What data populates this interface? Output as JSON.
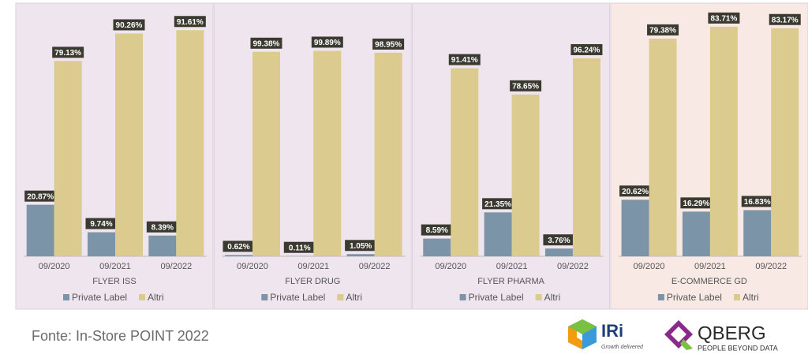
{
  "chart_data": [
    {
      "type": "bar",
      "title": "FLYER ISS",
      "categories": [
        "09/2020",
        "09/2021",
        "09/2022"
      ],
      "series": [
        {
          "name": "Private Label",
          "color": "#7b94a8",
          "values": [
            20.87,
            9.74,
            8.39
          ],
          "value_labels": [
            "20.87%",
            "9.74%",
            "8.39%"
          ]
        },
        {
          "name": "Altri",
          "color": "#dccb8e",
          "values": [
            79.13,
            90.26,
            91.61
          ],
          "value_labels": [
            "79.13%",
            "90.26%",
            "91.61%"
          ]
        }
      ],
      "ylim": [
        0,
        100
      ],
      "legend": "bottom",
      "background": "#efe5ee"
    },
    {
      "type": "bar",
      "title": "FLYER DRUG",
      "categories": [
        "09/2020",
        "09/2021",
        "09/2022"
      ],
      "series": [
        {
          "name": "Private Label",
          "color": "#7b94a8",
          "values": [
            0.62,
            0.11,
            1.05
          ],
          "value_labels": [
            "0.62%",
            "0.11%",
            "1.05%"
          ]
        },
        {
          "name": "Altri",
          "color": "#dccb8e",
          "values": [
            99.38,
            99.89,
            98.95
          ],
          "value_labels": [
            "99.38%",
            "99.89%",
            "98.95%"
          ]
        }
      ],
      "ylim": [
        0,
        120
      ],
      "legend": "bottom",
      "background": "#efe5ee"
    },
    {
      "type": "bar",
      "title": "FLYER PHARMA",
      "categories": [
        "09/2020",
        "09/2021",
        "09/2022"
      ],
      "series": [
        {
          "name": "Private Label",
          "color": "#7b94a8",
          "values": [
            8.59,
            21.35,
            3.76
          ],
          "value_labels": [
            "8.59%",
            "21.35%",
            "3.76%"
          ]
        },
        {
          "name": "Altri",
          "color": "#dccb8e",
          "values": [
            91.41,
            78.65,
            96.24
          ],
          "value_labels": [
            "91.41%",
            "78.65%",
            "96.24%"
          ]
        }
      ],
      "ylim": [
        0,
        120
      ],
      "legend": "bottom",
      "background": "#efe5ee"
    },
    {
      "type": "bar",
      "title": "E-COMMERCE GD",
      "categories": [
        "09/2020",
        "09/2021",
        "09/2022"
      ],
      "series": [
        {
          "name": "Private Label",
          "color": "#7b94a8",
          "values": [
            20.62,
            16.29,
            16.83
          ],
          "value_labels": [
            "20.62%",
            "16.29%",
            "16.83%"
          ]
        },
        {
          "name": "Altri",
          "color": "#dccb8e",
          "values": [
            79.38,
            83.71,
            83.17
          ],
          "value_labels": [
            "79.38%",
            "83.71%",
            "83.17%"
          ]
        }
      ],
      "ylim": [
        0,
        90
      ],
      "legend": "bottom",
      "background": "#f9e9e4"
    }
  ],
  "footer": {
    "source": "Fonte: In-Store POINT 2022",
    "logos": {
      "iri": {
        "name": "IRi",
        "tagline": "Growth delivered"
      },
      "qberg": {
        "name": "QBERG",
        "tagline": "PEOPLE BEYOND DATA"
      }
    }
  }
}
